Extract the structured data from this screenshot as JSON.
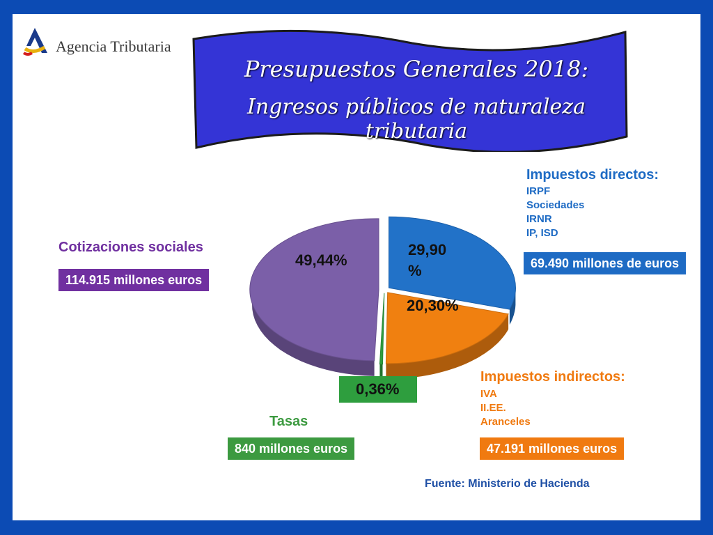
{
  "header": {
    "logo_text": "Agencia Tributaria",
    "title_line1": "Presupuestos Generales 2018:",
    "title_line2": "Ingresos públicos de naturaleza tributaria"
  },
  "categories": {
    "directos": {
      "title": "Impuestos directos:",
      "items": [
        "IRPF",
        "Sociedades",
        "IRNR",
        "IP, ISD"
      ],
      "amount": "69.490 millones de euros",
      "pct_label": "29,90 %"
    },
    "indirectos": {
      "title": "Impuestos indirectos:",
      "items": [
        "IVA",
        "II.EE.",
        "Aranceles"
      ],
      "amount": "47.191 millones euros",
      "pct_label": "20,30%"
    },
    "cotizaciones": {
      "title": "Cotizaciones sociales",
      "amount": "114.915 millones euros",
      "pct_label": "49,44%"
    },
    "tasas": {
      "title": "Tasas",
      "amount": "840 millones euros",
      "pct_label": "0,36%"
    }
  },
  "source": "Fuente: Ministerio de Hacienda",
  "colors": {
    "background": "#0c4bb4",
    "banner": "#3434d6",
    "directos": "#2272c8",
    "indirectos": "#f08010",
    "cotizaciones": "#7b5fa8",
    "tasas": "#2e9e3e",
    "cotizaciones_text": "#7030a0",
    "directos_text": "#1e6bc4",
    "indirectos_text": "#f07a10",
    "tasas_text": "#3c9a40"
  },
  "chart_data": {
    "type": "pie",
    "categories": [
      "Impuestos directos",
      "Impuestos indirectos",
      "Tasas",
      "Cotizaciones sociales"
    ],
    "values": [
      29.9,
      20.3,
      0.36,
      49.44
    ],
    "amounts_millions_eur": [
      69490,
      47191,
      840,
      114915
    ],
    "labels": [
      "29,90 %",
      "20,30%",
      "0,36%",
      "49,44%"
    ],
    "style": "3d-exploded",
    "legend": "none"
  }
}
